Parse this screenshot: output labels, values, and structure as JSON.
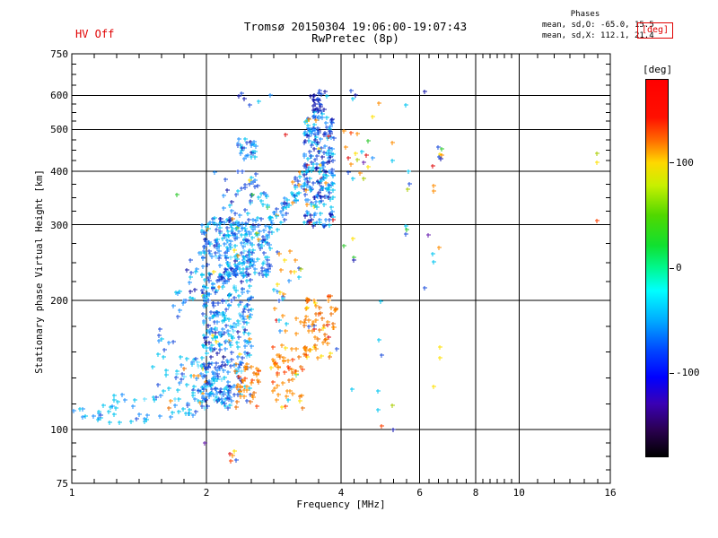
{
  "header": {
    "station_date_time": "Tromsø 20150304 19:06:00-19:07:43",
    "mode": "RwPretec (8p)",
    "hv_status": "HV Off"
  },
  "phases_summary": {
    "title": "Phases",
    "o_mode": "mean, sd,O: -65.0, 15.5",
    "x_mode": "mean, sd,X: 112.1, 21.4"
  },
  "colorbar": {
    "box_label": "[deg]",
    "unit_label": "[deg]",
    "value_range": [
      -180,
      180
    ],
    "ticks": [
      {
        "value": 100,
        "label": "100"
      },
      {
        "value": 0,
        "label": "0"
      },
      {
        "value": -100,
        "label": "-100"
      }
    ],
    "gradient": [
      {
        "t": 0.0,
        "c": "#ff0000"
      },
      {
        "t": 0.1,
        "c": "#ff1000"
      },
      {
        "t": 0.16,
        "c": "#ff6a00"
      },
      {
        "t": 0.22,
        "c": "#ffd800"
      },
      {
        "t": 0.28,
        "c": "#c8f000"
      },
      {
        "t": 0.36,
        "c": "#50d800"
      },
      {
        "t": 0.44,
        "c": "#10e030"
      },
      {
        "t": 0.5,
        "c": "#00f890"
      },
      {
        "t": 0.56,
        "c": "#00ffff"
      },
      {
        "t": 0.64,
        "c": "#00aaff"
      },
      {
        "t": 0.72,
        "c": "#0044ff"
      },
      {
        "t": 0.79,
        "c": "#0000ff"
      },
      {
        "t": 0.86,
        "c": "#3a00b4"
      },
      {
        "t": 0.93,
        "c": "#2a0050"
      },
      {
        "t": 1.0,
        "c": "#000000"
      }
    ]
  },
  "palette": {
    "lightcyan": "#5fdcff",
    "cyan": "#00c4f0",
    "skyblue": "#1e90ff",
    "blue": "#2050dc",
    "darkblue": "#1418ac",
    "navy": "#000080",
    "orange": "#ff8c00",
    "darkorange": "#ee6e00",
    "redorange": "#ff4000",
    "red": "#e01010",
    "yellow": "#ffe000",
    "greenyellow": "#aacc00",
    "green": "#2ec82e",
    "purple": "#6a1fb0"
  },
  "chart_data": {
    "type": "scatter",
    "marker": "plus",
    "title": "Tromsø 20150304 19:06:00-19:07:43",
    "subtitle": "RwPretec (8p)",
    "axes": {
      "xlabel": "Frequency [MHz]",
      "ylabel": "Stationary phase Virtual Height [km]",
      "x_scale": "log",
      "y_scale": "log",
      "x_range": [
        1,
        16
      ],
      "y_range": [
        75,
        750
      ],
      "x_ticks": [
        1,
        2,
        4,
        6,
        8,
        10,
        16
      ],
      "y_ticks": [
        75,
        100,
        200,
        300,
        400,
        500,
        600,
        750
      ],
      "x_grid": [
        2,
        4,
        6,
        8,
        10
      ],
      "y_grid": [
        100,
        200,
        300,
        400,
        500,
        600
      ]
    },
    "clusters": [
      {
        "name": "e-region-left",
        "f": [
          1.0,
          1.15
        ],
        "h": [
          102,
          112
        ],
        "n": 9,
        "colors": {
          "cyan": 6,
          "skyblue": 3
        }
      },
      {
        "name": "e-region-a",
        "f": [
          1.13,
          1.5
        ],
        "h": [
          104,
          122
        ],
        "n": 26,
        "colors": {
          "cyan": 14,
          "skyblue": 7,
          "lightcyan": 3,
          "blue": 1,
          "orange": 1
        }
      },
      {
        "name": "e-region-b",
        "f": [
          1.5,
          1.98
        ],
        "h": [
          106,
          148
        ],
        "n": 70,
        "bias": "high",
        "colors": {
          "cyan": 28,
          "skyblue": 17,
          "blue": 11,
          "lightcyan": 4,
          "orange": 6,
          "darkorange": 2,
          "yellow": 2
        }
      },
      {
        "name": "ef-valley",
        "f": [
          1.55,
          1.97
        ],
        "h": [
          148,
          258
        ],
        "n": 32,
        "mode": "diag-up",
        "colors": {
          "cyan": 12,
          "skyblue": 8,
          "blue": 10,
          "darkblue": 2
        }
      },
      {
        "name": "f-trace-main-band",
        "f": [
          1.95,
          2.28
        ],
        "h": [
          112,
          312
        ],
        "n": 330,
        "colors": {
          "cyan": 95,
          "skyblue": 95,
          "blue": 85,
          "darkblue": 25,
          "lightcyan": 15,
          "orange": 8,
          "yellow": 4,
          "navy": 3
        }
      },
      {
        "name": "f-trace-band2",
        "f": [
          2.28,
          2.52
        ],
        "h": [
          118,
          308
        ],
        "n": 130,
        "colors": {
          "cyan": 45,
          "skyblue": 35,
          "blue": 28,
          "lightcyan": 10,
          "darkblue": 6,
          "orange": 4,
          "yellow": 2
        }
      },
      {
        "name": "f-cusp",
        "f": [
          2.2,
          2.78
        ],
        "h": [
          228,
          312
        ],
        "n": 150,
        "colors": {
          "cyan": 55,
          "skyblue": 45,
          "blue": 30,
          "lightcyan": 10,
          "darkblue": 5,
          "orange": 3,
          "greenyellow": 2
        }
      },
      {
        "name": "above-cusp",
        "f": [
          2.05,
          2.75
        ],
        "h": [
          312,
          405
        ],
        "n": 42,
        "colors": {
          "blue": 15,
          "cyan": 12,
          "skyblue": 8,
          "darkblue": 3,
          "green": 2,
          "yellow": 2
        }
      },
      {
        "name": "f-rise",
        "f": [
          2.75,
          3.35
        ],
        "h": [
          288,
          398
        ],
        "n": 55,
        "mode": "diag-up",
        "colors": {
          "cyan": 18,
          "blue": 16,
          "skyblue": 14,
          "darkblue": 3,
          "orange": 4
        }
      },
      {
        "name": "x-trace-band",
        "f": [
          3.3,
          3.85
        ],
        "h": [
          298,
          545
        ],
        "n": 225,
        "colors": {
          "blue": 65,
          "cyan": 60,
          "skyblue": 55,
          "darkblue": 28,
          "orange": 8,
          "red": 4,
          "yellow": 5
        }
      },
      {
        "name": "x-trace-top",
        "f": [
          3.42,
          3.72
        ],
        "h": [
          548,
          618
        ],
        "n": 28,
        "colors": {
          "darkblue": 11,
          "blue": 8,
          "navy": 5,
          "cyan": 4
        }
      },
      {
        "name": "second-hop",
        "f": [
          2.33,
          2.6
        ],
        "h": [
          428,
          478
        ],
        "n": 28,
        "colors": {
          "cyan": 10,
          "skyblue": 8,
          "blue": 6,
          "yellow": 2,
          "darkblue": 2
        }
      },
      {
        "name": "x-low-1",
        "f": [
          2.3,
          2.62
        ],
        "h": [
          112,
          142
        ],
        "n": 40,
        "colors": {
          "orange": 20,
          "darkorange": 10,
          "redorange": 4,
          "yellow": 2,
          "blue": 2,
          "skyblue": 2
        }
      },
      {
        "name": "x-low-2",
        "f": [
          2.78,
          3.28
        ],
        "h": [
          112,
          158
        ],
        "n": 55,
        "colors": {
          "orange": 27,
          "darkorange": 16,
          "yellow": 5,
          "redorange": 4,
          "cyan": 3
        }
      },
      {
        "name": "x-low-hook",
        "f": [
          3.3,
          3.92
        ],
        "h": [
          146,
          205
        ],
        "n": 70,
        "colors": {
          "orange": 32,
          "darkorange": 21,
          "redorange": 7,
          "yellow": 5,
          "blue": 3,
          "red": 2
        }
      },
      {
        "name": "mid-scatter",
        "f": [
          2.82,
          3.3
        ],
        "h": [
          162,
          268
        ],
        "n": 30,
        "colors": {
          "orange": 9,
          "yellow": 5,
          "cyan": 6,
          "blue": 4,
          "skyblue": 3,
          "red": 1,
          "greenyellow": 2
        }
      }
    ],
    "points": [
      [
        1.98,
        93,
        "purple"
      ],
      [
        2.26,
        88,
        "red"
      ],
      [
        2.29,
        87,
        "orange"
      ],
      [
        2.31,
        89,
        "yellow"
      ],
      [
        2.27,
        84.5,
        "redorange"
      ],
      [
        2.33,
        85,
        "blue"
      ],
      [
        4.06,
        268,
        "green"
      ],
      [
        4.25,
        278,
        "yellow"
      ],
      [
        4.27,
        252,
        "green"
      ],
      [
        4.26,
        248,
        "darkblue"
      ],
      [
        5.58,
        298,
        "cyan"
      ],
      [
        5.6,
        293,
        "green"
      ],
      [
        5.58,
        285,
        "blue"
      ],
      [
        6.26,
        284,
        "purple"
      ],
      [
        6.62,
        266,
        "orange"
      ],
      [
        6.42,
        257,
        "cyan"
      ],
      [
        6.44,
        246,
        "cyan"
      ],
      [
        6.15,
        214,
        "blue"
      ],
      [
        4.9,
        199,
        "cyan"
      ],
      [
        4.86,
        162,
        "cyan"
      ],
      [
        4.93,
        149,
        "blue"
      ],
      [
        6.65,
        156,
        "yellow"
      ],
      [
        6.66,
        147,
        "yellow"
      ],
      [
        6.43,
        126,
        "yellow"
      ],
      [
        4.22,
        124,
        "cyan"
      ],
      [
        4.83,
        123,
        "cyan"
      ],
      [
        5.2,
        114,
        "greenyellow"
      ],
      [
        4.83,
        111,
        "cyan"
      ],
      [
        4.93,
        102,
        "redorange"
      ],
      [
        5.23,
        100,
        "darkblue"
      ],
      [
        5.21,
        466,
        "orange"
      ],
      [
        5.2,
        423,
        "cyan"
      ],
      [
        5.66,
        400,
        "cyan"
      ],
      [
        6.6,
        455,
        "blue"
      ],
      [
        6.7,
        450,
        "green"
      ],
      [
        6.65,
        437,
        "yellow"
      ],
      [
        6.72,
        436,
        "orange"
      ],
      [
        6.62,
        432,
        "blue"
      ],
      [
        6.68,
        428,
        "darkblue"
      ],
      [
        6.42,
        411,
        "red"
      ],
      [
        5.69,
        374,
        "blue"
      ],
      [
        5.63,
        363,
        "greenyellow"
      ],
      [
        6.43,
        370,
        "orange"
      ],
      [
        6.45,
        360,
        "orange"
      ],
      [
        14.9,
        440,
        "greenyellow"
      ],
      [
        14.95,
        420,
        "yellow"
      ],
      [
        14.9,
        306,
        "redorange"
      ],
      [
        4.06,
        495,
        "orange"
      ],
      [
        4.2,
        492,
        "redorange"
      ],
      [
        4.35,
        490,
        "orange"
      ],
      [
        4.1,
        455,
        "orange"
      ],
      [
        4.15,
        430,
        "red"
      ],
      [
        4.2,
        415,
        "orange"
      ],
      [
        4.3,
        440,
        "yellow"
      ],
      [
        4.35,
        425,
        "greenyellow"
      ],
      [
        4.45,
        445,
        "cyan"
      ],
      [
        4.5,
        420,
        "purple"
      ],
      [
        4.55,
        435,
        "red"
      ],
      [
        4.6,
        410,
        "yellow"
      ],
      [
        4.4,
        395,
        "orange"
      ],
      [
        4.25,
        385,
        "cyan"
      ],
      [
        4.15,
        398,
        "blue"
      ],
      [
        4.6,
        470,
        "green"
      ],
      [
        4.7,
        430,
        "skyblue"
      ],
      [
        4.5,
        385,
        "greenyellow"
      ],
      [
        4.86,
        575,
        "orange"
      ],
      [
        5.58,
        570,
        "cyan"
      ],
      [
        4.7,
        535,
        "yellow"
      ],
      [
        6.15,
        612,
        "darkblue"
      ],
      [
        4.2,
        615,
        "blue"
      ],
      [
        4.3,
        600,
        "darkblue"
      ],
      [
        4.25,
        590,
        "cyan"
      ],
      [
        2.36,
        598,
        "darkblue"
      ],
      [
        2.4,
        608,
        "blue"
      ],
      [
        2.43,
        590,
        "darkblue"
      ],
      [
        2.62,
        582,
        "cyan"
      ],
      [
        2.78,
        600,
        "skyblue"
      ],
      [
        2.5,
        570,
        "blue"
      ],
      [
        3.0,
        486,
        "red"
      ],
      [
        1.72,
        352,
        "green"
      ]
    ]
  }
}
